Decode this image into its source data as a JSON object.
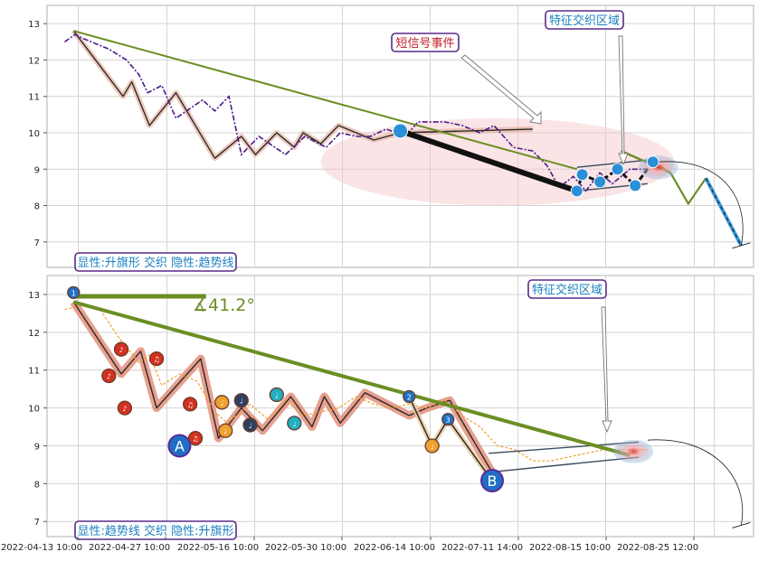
{
  "chart_data": [
    {
      "type": "line",
      "panel": "top",
      "ylim": [
        6.3,
        13.5
      ],
      "yticks": [
        7,
        8,
        9,
        10,
        11,
        12,
        13
      ],
      "grid": true,
      "price_line": {
        "x": [
          0.0,
          0.6,
          1.0,
          2.5,
          3.5,
          4.2,
          4.7,
          5.5,
          6.3,
          7.2,
          7.8,
          8.5,
          9.3,
          10.0,
          11.0,
          12.5,
          13.6,
          14.8,
          15.6,
          16.5,
          17.3,
          18.2,
          19.3,
          20.0,
          21.5,
          22.5,
          23.5,
          24.3,
          25.4,
          26.5,
          27.3,
          28.0,
          28.8,
          29.5,
          30.3,
          31.0,
          32.0,
          33.0
        ],
        "y": [
          12.5,
          12.7,
          12.6,
          12.3,
          12.0,
          11.6,
          11.1,
          11.3,
          10.4,
          10.7,
          10.9,
          10.6,
          11.0,
          9.4,
          9.9,
          9.4,
          9.9,
          9.6,
          10.0,
          9.9,
          9.9,
          10.1,
          9.9,
          10.3,
          10.3,
          10.2,
          10.0,
          10.2,
          9.6,
          9.5,
          9.1,
          8.5,
          8.8,
          8.4,
          8.9,
          8.6,
          9.0,
          9.0
        ]
      },
      "wave_line": {
        "x": [
          0.5,
          3.3,
          3.8,
          4.8,
          6.3,
          8.5,
          10.0,
          10.8,
          12.0,
          13.0,
          13.5,
          14.5,
          15.5,
          17.5,
          19.0,
          26.5
        ],
        "y": [
          12.8,
          11.0,
          11.4,
          10.2,
          11.1,
          9.3,
          9.9,
          9.4,
          10.0,
          9.6,
          10.0,
          9.7,
          10.2,
          9.8,
          10.0,
          10.1
        ]
      },
      "trend_line": {
        "x": [
          0.5,
          29.0
        ],
        "y": [
          12.8,
          9.0
        ]
      },
      "flag_top": {
        "x": [
          31.5,
          34.3
        ],
        "y": [
          9.5,
          8.9
        ]
      },
      "flag_channel": {
        "upper": {
          "x": [
            29.0,
            33.0
          ],
          "y": [
            9.05,
            9.25
          ]
        },
        "lower": {
          "x": [
            29.0,
            33.0
          ],
          "y": [
            8.4,
            8.6
          ]
        }
      },
      "markers": [
        {
          "x": 19.0,
          "y": 10.05
        },
        {
          "x": 29.0,
          "y": 8.4
        },
        {
          "x": 29.3,
          "y": 8.85
        },
        {
          "x": 30.3,
          "y": 8.65
        },
        {
          "x": 31.3,
          "y": 9.0
        },
        {
          "x": 32.3,
          "y": 8.55
        },
        {
          "x": 33.3,
          "y": 9.2
        }
      ],
      "forecast_line": {
        "x": [
          33.3,
          34.3,
          35.3,
          36.3,
          38.3
        ],
        "y": [
          9.2,
          8.9,
          8.05,
          8.75,
          6.9
        ]
      },
      "projection_arc": {
        "x": [
          33.6,
          35.6,
          37.6,
          38.3
        ],
        "y": [
          9.2,
          8.8,
          7.5,
          6.9
        ]
      },
      "highlight_ellipse": {
        "x": [
          14.5,
          34.5
        ],
        "y": [
          8.0,
          10.4
        ]
      },
      "annotations": [
        {
          "text": "短信号事件",
          "style": "short"
        },
        {
          "text": "特征交织区域",
          "style": "feature"
        }
      ],
      "caption": "显性:升旗形 交织 隐性:趋势线"
    },
    {
      "type": "line",
      "panel": "bottom",
      "ylim": [
        6.6,
        13.5
      ],
      "yticks": [
        7,
        8,
        9,
        10,
        11,
        12,
        13
      ],
      "grid": true,
      "xtick_labels": [
        "2022-04-13 10:00",
        "2022-04-27 10:00",
        "2022-05-16 10:00",
        "2022-05-30 10:00",
        "2022-06-14 10:00",
        "2022-07-11 14:00",
        "2022-08-15 10:00",
        "2022-08-25 12:00"
      ],
      "price_line": {
        "x": [
          0.0,
          1.0,
          2.0,
          3.0,
          4.2,
          4.8,
          5.5,
          6.5,
          7.5,
          8.5,
          9.2,
          10.5,
          11.5,
          12.5,
          13.5,
          14.5,
          15.5,
          16.5,
          17.5,
          18.5,
          19.5,
          20.5,
          21.5,
          22.5,
          23.5,
          24.5,
          25.5,
          26.5,
          27.5,
          28.5,
          29.5,
          30.5,
          31.5,
          32.5,
          33.0
        ],
        "y": [
          12.6,
          12.7,
          12.6,
          11.9,
          11.2,
          11.4,
          10.6,
          10.9,
          10.7,
          9.9,
          9.6,
          10.1,
          9.7,
          10.2,
          9.8,
          9.9,
          10.0,
          10.3,
          10.1,
          10.0,
          10.1,
          10.0,
          10.2,
          9.8,
          9.5,
          9.0,
          8.9,
          8.6,
          8.6,
          8.7,
          8.8,
          8.9,
          8.9,
          8.9,
          8.9
        ]
      },
      "wave_line": {
        "x": [
          0.5,
          3.2,
          4.3,
          5.2,
          7.7,
          8.7,
          10.0,
          11.2,
          12.8,
          14.0,
          14.7,
          15.6,
          17.0,
          19.5,
          20.5,
          21.8,
          24.2,
          24.6
        ],
        "y": [
          12.8,
          10.9,
          11.5,
          10.0,
          11.3,
          9.2,
          10.0,
          9.4,
          10.3,
          9.5,
          10.3,
          9.6,
          10.4,
          9.8,
          10.0,
          10.2,
          8.3,
          8.2
        ]
      },
      "trend_line": {
        "x": [
          0.5,
          32.0
        ],
        "y": [
          12.8,
          8.75
        ]
      },
      "flag_top": {
        "x": [
          0.5,
          8.0
        ],
        "y": [
          12.95,
          12.95
        ]
      },
      "flag_channel": {
        "upper": {
          "x": [
            24.0,
            32.5
          ],
          "y": [
            8.8,
            9.1
          ]
        },
        "lower": {
          "x": [
            24.0,
            32.5
          ],
          "y": [
            8.3,
            8.7
          ]
        }
      },
      "markers": [
        {
          "x": 0.5,
          "y": 13.05,
          "label": "1",
          "color": "#1f6fc5"
        },
        {
          "x": 2.5,
          "y": 10.85,
          "label": "♪",
          "color": "#d33020"
        },
        {
          "x": 3.2,
          "y": 11.55,
          "label": "♪",
          "color": "#d33020"
        },
        {
          "x": 3.4,
          "y": 10.0,
          "label": "♪",
          "color": "#d33020"
        },
        {
          "x": 5.2,
          "y": 11.3,
          "label": "♫",
          "color": "#d33020"
        },
        {
          "x": 7.1,
          "y": 10.1,
          "label": "♫",
          "color": "#d33020"
        },
        {
          "x": 7.4,
          "y": 9.2,
          "label": "♫",
          "color": "#d33020"
        },
        {
          "x": 8.9,
          "y": 10.15,
          "label": "♩",
          "color": "#f0a030"
        },
        {
          "x": 9.1,
          "y": 9.4,
          "label": "♩",
          "color": "#f0a030"
        },
        {
          "x": 10.0,
          "y": 10.2,
          "label": "♩",
          "color": "#2f3f60"
        },
        {
          "x": 10.5,
          "y": 9.55,
          "label": "♩",
          "color": "#2f3f60"
        },
        {
          "x": 12.0,
          "y": 10.35,
          "label": "♩",
          "color": "#20b0c0"
        },
        {
          "x": 13.0,
          "y": 9.6,
          "label": "♩",
          "color": "#20b0c0"
        },
        {
          "x": 19.5,
          "y": 10.3,
          "label": "2",
          "color": "#1f6fc5"
        },
        {
          "x": 20.8,
          "y": 9.0,
          "label": "♩",
          "color": "#f0a030"
        },
        {
          "x": 21.7,
          "y": 9.7,
          "label": "3",
          "color": "#1f6fc5"
        },
        {
          "x": 6.5,
          "y": 9.0,
          "label": "A",
          "color": "#1f6fc5"
        },
        {
          "x": 24.2,
          "y": 8.08,
          "label": "B",
          "color": "#1f6fc5"
        }
      ],
      "angle_label": "∡41.2°",
      "projection_arc": {
        "x": [
          33.0,
          35.0,
          37.0,
          38.3
        ],
        "y": [
          9.15,
          8.8,
          7.6,
          6.9
        ]
      },
      "annotations": [
        {
          "text": "特征交织区域",
          "style": "feature"
        }
      ],
      "caption": "显性:趋势线 交织 隐性:升旗形"
    }
  ]
}
